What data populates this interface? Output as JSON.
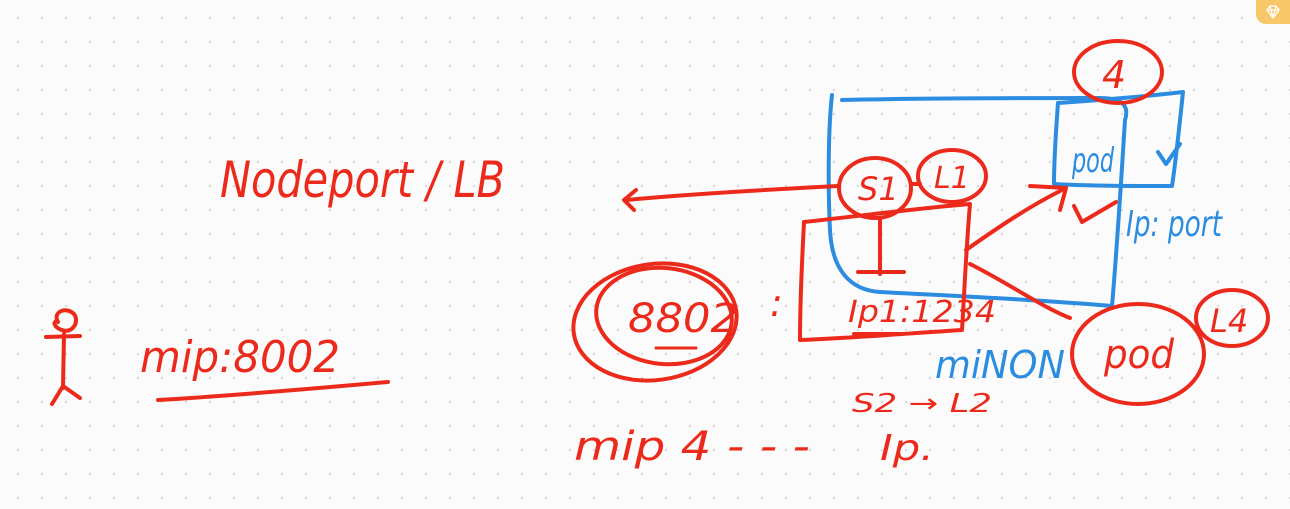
{
  "colors": {
    "red": "#ec2a1c",
    "blue": "#2b8ce0",
    "badge": "#f7c86a"
  },
  "icons": {
    "corner": "diamond-icon",
    "person": "stick-figure-icon"
  },
  "labels": {
    "title": "Nodeport / LB",
    "mip_port": "mip:8002",
    "port_8802": "8802",
    "colon": ":",
    "node_port": "Ip1:1234",
    "s1": "S1",
    "l1": "L1",
    "four": "4",
    "pod_top": "pod",
    "ip_port": "Ip: port",
    "minion": "miNON",
    "pod_bottom": "pod",
    "l4": "L4",
    "s2_l2": "S2 → L2",
    "mip_bottom": "mip 4 - -  -",
    "ip_bottom": "Ip."
  }
}
